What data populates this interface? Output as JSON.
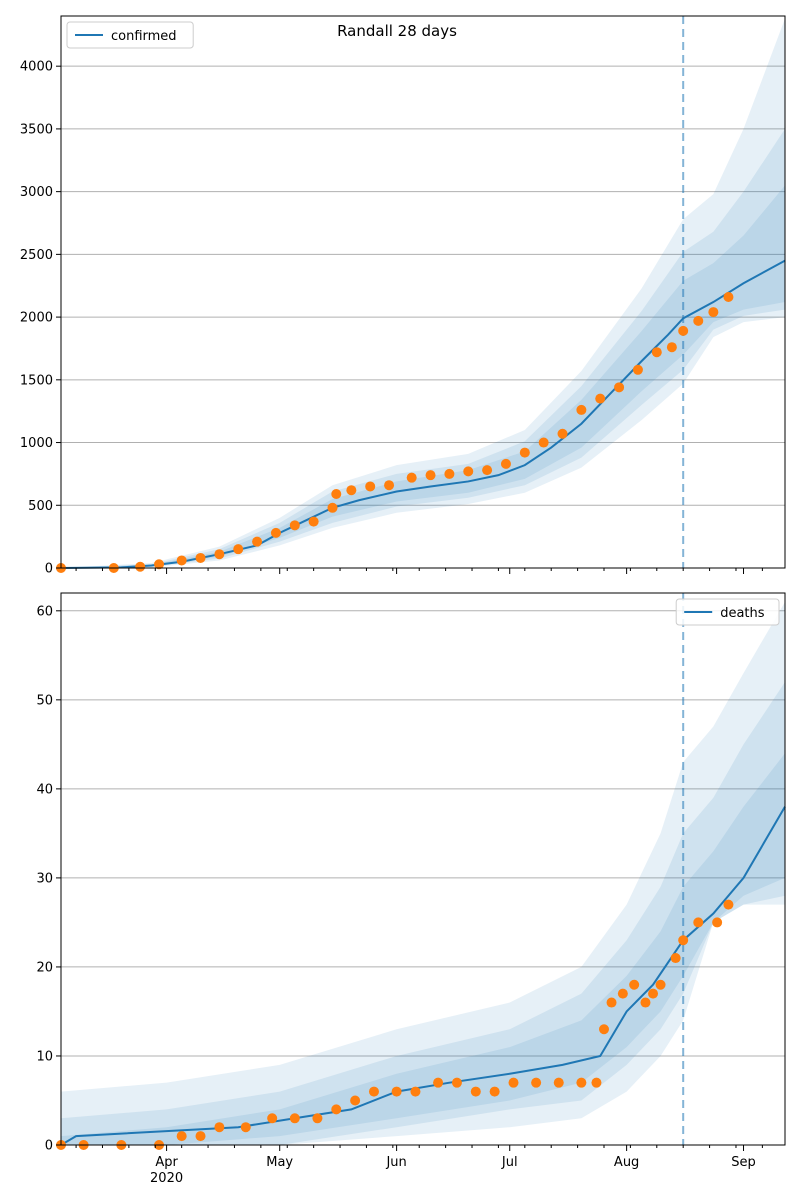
{
  "colors": {
    "line": "#1f77b4",
    "observed": "#ff7f0e",
    "band": "#1f77b4",
    "grid": "#b0b0b0"
  },
  "x_ticks": {
    "minor_dates": [
      "2020-03-08",
      "2020-03-15",
      "2020-03-22",
      "2020-03-29",
      "2020-04-05",
      "2020-04-12",
      "2020-04-19",
      "2020-04-26",
      "2020-05-03",
      "2020-05-10",
      "2020-05-17",
      "2020-05-24",
      "2020-05-31",
      "2020-06-07",
      "2020-06-14",
      "2020-06-21",
      "2020-06-28",
      "2020-07-05",
      "2020-07-12",
      "2020-07-19",
      "2020-07-26",
      "2020-08-02",
      "2020-08-09",
      "2020-08-16",
      "2020-08-23",
      "2020-08-30",
      "2020-09-06"
    ],
    "major": [
      {
        "date": "2020-04-01",
        "label": "Apr",
        "sublabel": "2020"
      },
      {
        "date": "2020-05-01",
        "label": "May",
        "sublabel": ""
      },
      {
        "date": "2020-06-01",
        "label": "Jun",
        "sublabel": ""
      },
      {
        "date": "2020-07-01",
        "label": "Jul",
        "sublabel": ""
      },
      {
        "date": "2020-08-01",
        "label": "Aug",
        "sublabel": ""
      },
      {
        "date": "2020-09-01",
        "label": "Sep",
        "sublabel": ""
      }
    ]
  },
  "chart_data": [
    {
      "type": "line",
      "title": "Randall 28 days",
      "xlim": [
        "2020-03-04",
        "2020-09-12"
      ],
      "ylim": [
        0,
        4400
      ],
      "yticks": [
        0,
        500,
        1000,
        1500,
        2000,
        2500,
        3000,
        3500,
        4000
      ],
      "grid": "horizontal",
      "legend": {
        "entries": [
          "confirmed"
        ],
        "position": "top-left"
      },
      "forecast_start": "2020-08-16",
      "model_line": {
        "name": "confirmed",
        "x": [
          "2020-03-04",
          "2020-03-20",
          "2020-03-28",
          "2020-04-05",
          "2020-04-15",
          "2020-04-25",
          "2020-05-01",
          "2020-05-08",
          "2020-05-15",
          "2020-05-22",
          "2020-06-01",
          "2020-06-10",
          "2020-06-20",
          "2020-06-28",
          "2020-07-05",
          "2020-07-12",
          "2020-07-20",
          "2020-07-28",
          "2020-08-05",
          "2020-08-12",
          "2020-08-16",
          "2020-08-24",
          "2020-09-01",
          "2020-09-12"
        ],
        "y": [
          0,
          5,
          20,
          50,
          110,
          180,
          280,
          380,
          480,
          540,
          610,
          650,
          690,
          740,
          820,
          960,
          1150,
          1400,
          1650,
          1860,
          1990,
          2120,
          2270,
          2450
        ]
      },
      "bands": [
        {
          "x": [
            "2020-03-04",
            "2020-03-28",
            "2020-04-15",
            "2020-05-01",
            "2020-05-15",
            "2020-06-01",
            "2020-06-20",
            "2020-07-05",
            "2020-07-20",
            "2020-08-05",
            "2020-08-16",
            "2020-08-24",
            "2020-09-01",
            "2020-09-12"
          ],
          "lower": [
            0,
            15,
            90,
            240,
            410,
            530,
            600,
            710,
            960,
            1410,
            1700,
            1960,
            2060,
            2120
          ],
          "upper": [
            0,
            25,
            130,
            320,
            550,
            690,
            780,
            930,
            1340,
            1890,
            2290,
            2430,
            2650,
            3050
          ]
        },
        {
          "x": [
            "2020-03-04",
            "2020-03-28",
            "2020-04-15",
            "2020-05-01",
            "2020-05-15",
            "2020-06-01",
            "2020-06-20",
            "2020-07-05",
            "2020-07-20",
            "2020-08-05",
            "2020-08-16",
            "2020-08-24",
            "2020-09-01",
            "2020-09-12"
          ],
          "lower": [
            0,
            10,
            75,
            210,
            360,
            490,
            560,
            660,
            880,
            1300,
            1580,
            1900,
            2010,
            2060
          ],
          "upper": [
            0,
            30,
            150,
            360,
            610,
            750,
            830,
            1010,
            1450,
            2050,
            2520,
            2680,
            3000,
            3500
          ]
        },
        {
          "x": [
            "2020-03-04",
            "2020-03-28",
            "2020-04-15",
            "2020-05-01",
            "2020-05-15",
            "2020-06-01",
            "2020-06-20",
            "2020-07-05",
            "2020-07-20",
            "2020-08-05",
            "2020-08-16",
            "2020-08-24",
            "2020-09-01",
            "2020-09-12"
          ],
          "lower": [
            0,
            5,
            60,
            180,
            320,
            440,
            510,
            600,
            800,
            1180,
            1470,
            1840,
            1960,
            2000
          ],
          "upper": [
            0,
            40,
            170,
            400,
            660,
            820,
            910,
            1100,
            1570,
            2230,
            2780,
            2980,
            3500,
            4380
          ]
        }
      ],
      "observed": {
        "name": "observed",
        "x": [
          "2020-03-04",
          "2020-03-18",
          "2020-03-25",
          "2020-03-30",
          "2020-04-05",
          "2020-04-10",
          "2020-04-15",
          "2020-04-20",
          "2020-04-25",
          "2020-04-30",
          "2020-05-05",
          "2020-05-10",
          "2020-05-15",
          "2020-05-16",
          "2020-05-20",
          "2020-05-25",
          "2020-05-30",
          "2020-06-05",
          "2020-06-10",
          "2020-06-15",
          "2020-06-20",
          "2020-06-25",
          "2020-06-30",
          "2020-07-05",
          "2020-07-10",
          "2020-07-15",
          "2020-07-20",
          "2020-07-25",
          "2020-07-30",
          "2020-08-04",
          "2020-08-09",
          "2020-08-13",
          "2020-08-16",
          "2020-08-20",
          "2020-08-24",
          "2020-08-28"
        ],
        "y": [
          0,
          0,
          10,
          30,
          60,
          80,
          110,
          150,
          210,
          280,
          340,
          370,
          480,
          590,
          620,
          650,
          660,
          720,
          740,
          750,
          770,
          780,
          830,
          920,
          1000,
          1070,
          1260,
          1350,
          1440,
          1580,
          1720,
          1760,
          1890,
          1970,
          2040,
          2160
        ]
      }
    },
    {
      "type": "line",
      "title": "",
      "xlim": [
        "2020-03-04",
        "2020-09-12"
      ],
      "ylim": [
        0,
        62
      ],
      "yticks": [
        0,
        10,
        20,
        30,
        40,
        50,
        60
      ],
      "grid": "horizontal",
      "legend": {
        "entries": [
          "deaths"
        ],
        "position": "top-right"
      },
      "forecast_start": "2020-08-16",
      "model_line": {
        "name": "deaths",
        "x": [
          "2020-03-04",
          "2020-03-08",
          "2020-04-20",
          "2020-05-05",
          "2020-05-20",
          "2020-06-01",
          "2020-06-15",
          "2020-07-01",
          "2020-07-15",
          "2020-07-25",
          "2020-08-01",
          "2020-08-08",
          "2020-08-16",
          "2020-08-24",
          "2020-09-01",
          "2020-09-12"
        ],
        "y": [
          0,
          1,
          2,
          3,
          4,
          6,
          7,
          8,
          9,
          10,
          15,
          18,
          23,
          26,
          30,
          38
        ]
      },
      "bands": [
        {
          "x": [
            "2020-03-04",
            "2020-04-01",
            "2020-05-01",
            "2020-06-01",
            "2020-07-01",
            "2020-07-20",
            "2020-08-01",
            "2020-08-10",
            "2020-08-16",
            "2020-08-24",
            "2020-09-01",
            "2020-09-12"
          ],
          "lower": [
            0,
            0,
            1,
            3,
            5,
            7,
            11,
            15,
            19,
            25,
            28,
            30
          ],
          "upper": [
            1,
            2,
            4,
            8,
            11,
            14,
            19,
            24,
            29,
            33,
            38,
            44
          ]
        },
        {
          "x": [
            "2020-03-04",
            "2020-04-01",
            "2020-05-01",
            "2020-06-01",
            "2020-07-01",
            "2020-07-20",
            "2020-08-01",
            "2020-08-10",
            "2020-08-16",
            "2020-08-24",
            "2020-09-01",
            "2020-09-12"
          ],
          "lower": [
            0,
            0,
            0,
            2,
            4,
            5,
            9,
            13,
            17,
            25,
            27,
            28
          ],
          "upper": [
            3,
            4,
            6,
            10,
            13,
            17,
            23,
            29,
            35,
            39,
            45,
            52
          ]
        },
        {
          "x": [
            "2020-03-04",
            "2020-04-01",
            "2020-05-01",
            "2020-06-01",
            "2020-07-01",
            "2020-07-20",
            "2020-08-01",
            "2020-08-10",
            "2020-08-16",
            "2020-08-24",
            "2020-09-01",
            "2020-09-12"
          ],
          "lower": [
            0,
            0,
            0,
            1,
            2,
            3,
            6,
            10,
            14,
            25,
            27,
            27
          ],
          "upper": [
            6,
            7,
            9,
            13,
            16,
            20,
            27,
            35,
            43,
            47,
            53,
            61
          ]
        }
      ],
      "observed": {
        "name": "observed",
        "x": [
          "2020-03-04",
          "2020-03-10",
          "2020-03-20",
          "2020-03-30",
          "2020-04-05",
          "2020-04-10",
          "2020-04-15",
          "2020-04-22",
          "2020-04-29",
          "2020-05-05",
          "2020-05-11",
          "2020-05-16",
          "2020-05-21",
          "2020-05-26",
          "2020-06-01",
          "2020-06-06",
          "2020-06-12",
          "2020-06-17",
          "2020-06-22",
          "2020-06-27",
          "2020-07-02",
          "2020-07-08",
          "2020-07-14",
          "2020-07-20",
          "2020-07-24",
          "2020-07-26",
          "2020-07-28",
          "2020-07-31",
          "2020-08-03",
          "2020-08-06",
          "2020-08-08",
          "2020-08-10",
          "2020-08-14",
          "2020-08-16",
          "2020-08-20",
          "2020-08-25",
          "2020-08-28"
        ],
        "y": [
          0,
          0,
          0,
          0,
          1,
          1,
          2,
          2,
          3,
          3,
          3,
          4,
          5,
          6,
          6,
          6,
          7,
          7,
          6,
          6,
          7,
          7,
          7,
          7,
          7,
          13,
          16,
          17,
          18,
          16,
          17,
          18,
          21,
          23,
          25,
          25,
          27
        ]
      }
    }
  ]
}
